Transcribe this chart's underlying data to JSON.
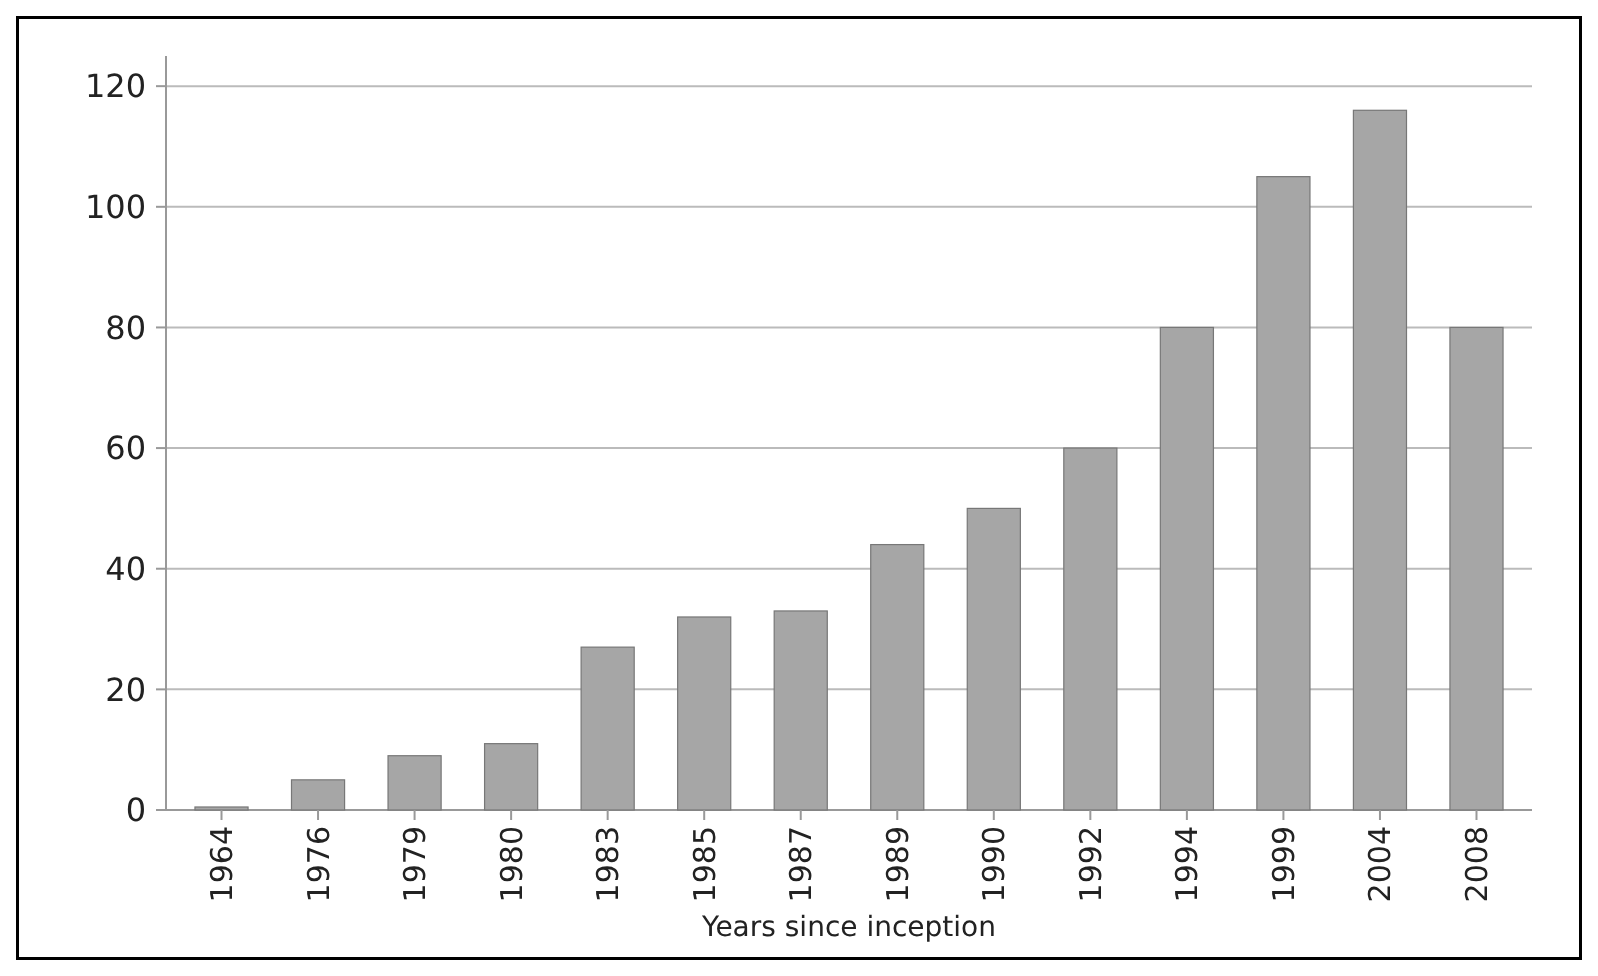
{
  "chart_data": {
    "type": "bar",
    "xlabel": "Years since inception",
    "categories": [
      "1964",
      "1976",
      "1979",
      "1980",
      "1983",
      "1985",
      "1987",
      "1989",
      "1990",
      "1992",
      "1994",
      "1999",
      "2004",
      "2008"
    ],
    "values": [
      0.5,
      5,
      9,
      11,
      27,
      32,
      33,
      44,
      50,
      60,
      80,
      105,
      116,
      80
    ],
    "color": "#a6a6a6",
    "ylim": [
      0,
      125
    ],
    "yticks": [
      0,
      20,
      40,
      60,
      80,
      100,
      120
    ],
    "grid": "y"
  }
}
